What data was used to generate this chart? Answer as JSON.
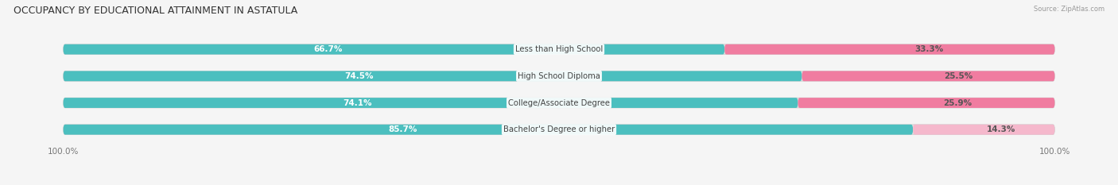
{
  "title": "OCCUPANCY BY EDUCATIONAL ATTAINMENT IN ASTATULA",
  "source": "Source: ZipAtlas.com",
  "categories": [
    "Less than High School",
    "High School Diploma",
    "College/Associate Degree",
    "Bachelor's Degree or higher"
  ],
  "owner_values": [
    66.7,
    74.5,
    74.1,
    85.7
  ],
  "renter_values": [
    33.3,
    25.5,
    25.9,
    14.3
  ],
  "owner_color": "#4bbfbf",
  "renter_color": "#f07ca0",
  "renter_color_light": "#f5b8cc",
  "bar_bg_color": "#e0e0e0",
  "title_fontsize": 9,
  "label_fontsize": 7.5,
  "value_fontsize": 7.5,
  "tick_fontsize": 7.5,
  "bar_height": 0.38,
  "bar_spacing": 1.0,
  "background_color": "#f5f5f5",
  "fig_width": 14.06,
  "fig_height": 2.33
}
